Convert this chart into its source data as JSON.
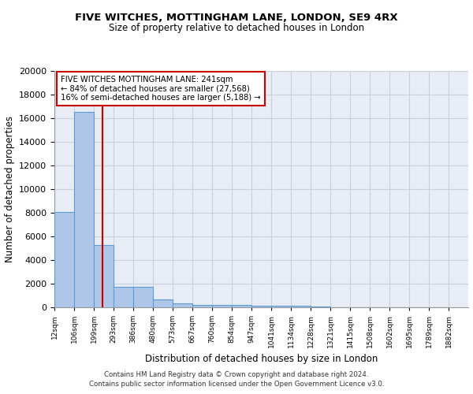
{
  "title1": "FIVE WITCHES, MOTTINGHAM LANE, LONDON, SE9 4RX",
  "title2": "Size of property relative to detached houses in London",
  "xlabel": "Distribution of detached houses by size in London",
  "ylabel": "Number of detached properties",
  "bar_edges": [
    12,
    106,
    199,
    293,
    386,
    480,
    573,
    667,
    760,
    854,
    947,
    1041,
    1134,
    1228,
    1321,
    1415,
    1508,
    1602,
    1695,
    1789,
    1882
  ],
  "bar_heights": [
    8100,
    16500,
    5300,
    1750,
    1750,
    700,
    350,
    230,
    200,
    180,
    160,
    140,
    120,
    100,
    0,
    0,
    0,
    0,
    0,
    0
  ],
  "bar_color": "#aec6e8",
  "bar_edge_color": "#5b9bd5",
  "grid_color": "#c8d0dc",
  "bg_color": "#e8edf5",
  "red_line_x": 241,
  "red_line_color": "#cc0000",
  "annotation_text": "FIVE WITCHES MOTTINGHAM LANE: 241sqm\n← 84% of detached houses are smaller (27,568)\n16% of semi-detached houses are larger (5,188) →",
  "annotation_box_color": "white",
  "annotation_box_edge_color": "#cc0000",
  "ylim": [
    0,
    20000
  ],
  "yticks": [
    0,
    2000,
    4000,
    6000,
    8000,
    10000,
    12000,
    14000,
    16000,
    18000,
    20000
  ],
  "footnote1": "Contains HM Land Registry data © Crown copyright and database right 2024.",
  "footnote2": "Contains public sector information licensed under the Open Government Licence v3.0.",
  "tick_labels": [
    "12sqm",
    "106sqm",
    "199sqm",
    "293sqm",
    "386sqm",
    "480sqm",
    "573sqm",
    "667sqm",
    "760sqm",
    "854sqm",
    "947sqm",
    "1041sqm",
    "1134sqm",
    "1228sqm",
    "1321sqm",
    "1415sqm",
    "1508sqm",
    "1602sqm",
    "1695sqm",
    "1789sqm",
    "1882sqm"
  ]
}
